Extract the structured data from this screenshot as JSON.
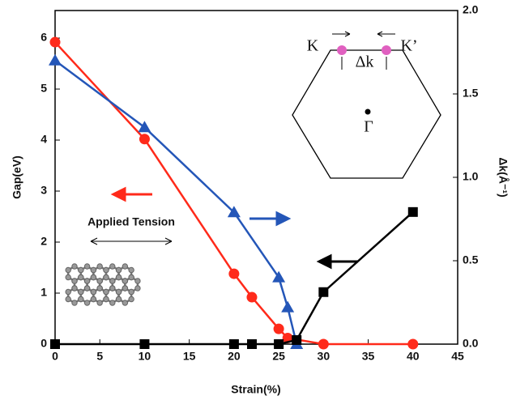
{
  "chart_data": {
    "type": "line",
    "xlabel": "Strain(%)",
    "ylabel": "Gap(eV)",
    "y2label": "Δk(Å⁻¹)",
    "xlim": [
      0,
      45
    ],
    "xticks": [
      0,
      5,
      10,
      15,
      20,
      25,
      30,
      35,
      40,
      45
    ],
    "ylim": [
      0,
      6.54
    ],
    "yticks": [
      0,
      1,
      2,
      3,
      4,
      5,
      6
    ],
    "y2lim": [
      0,
      2
    ],
    "y2ticks": [
      {
        "value": 0,
        "label": "0.0"
      },
      0.5,
      {
        "value": 1,
        "label": "1.0"
      },
      1.5,
      {
        "value": 2,
        "label": "2.0"
      }
    ],
    "series": [
      {
        "color": "#ff2a1a",
        "marker": "circle",
        "x": [
          0,
          10,
          20,
          22,
          25,
          26,
          30,
          40
        ],
        "values": [
          5.92,
          4.02,
          1.38,
          0.92,
          0.3,
          0.12,
          0,
          0
        ]
      },
      {
        "color": "#2456b8",
        "marker": "triangle",
        "axis": "y2",
        "x": [
          0,
          10,
          20,
          25,
          26,
          27
        ],
        "values": [
          1.7,
          1.3,
          0.79,
          0.4,
          0.22,
          0
        ]
      },
      {
        "color": "#000000",
        "marker": "square",
        "x": [
          0,
          10,
          20,
          22,
          25,
          27,
          30,
          40
        ],
        "values": [
          0,
          0,
          0,
          0,
          0,
          0.08,
          1.02,
          2.59
        ]
      }
    ],
    "annotations": {
      "tension": "Applied Tension",
      "k": "K",
      "kprime": "K’",
      "dk": "Δk",
      "gamma": "Γ"
    }
  }
}
